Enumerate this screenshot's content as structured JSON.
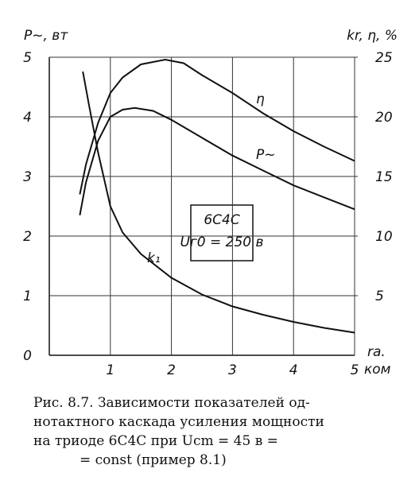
{
  "chart_data": {
    "type": "line",
    "y_label": "P~, вт",
    "y2_label": "kr, η, %",
    "x_label": "rа.",
    "x_unit": "ком",
    "xlim": [
      0,
      5
    ],
    "xticks": [
      1,
      2,
      3,
      4,
      5
    ],
    "ylim": [
      0,
      5
    ],
    "yticks": [
      0,
      1,
      2,
      3,
      4,
      5
    ],
    "y2lim": [
      0,
      25
    ],
    "y2ticks": [
      5,
      10,
      15,
      20,
      25
    ],
    "grid": true,
    "series": [
      {
        "name": "P~",
        "color": "#111",
        "x": [
          0.5,
          0.6,
          0.8,
          1.0,
          1.2,
          1.4,
          1.7,
          2,
          2.5,
          3,
          3.5,
          4,
          4.5,
          5
        ],
        "values": [
          2.35,
          2.9,
          3.6,
          4.0,
          4.12,
          4.15,
          4.1,
          3.95,
          3.65,
          3.35,
          3.1,
          2.85,
          2.65,
          2.45
        ]
      },
      {
        "name": "η",
        "color": "#111",
        "axis": "y2",
        "x": [
          0.5,
          0.6,
          0.8,
          1,
          1.2,
          1.5,
          1.9,
          2.2,
          2.5,
          3,
          3.5,
          4,
          4.5,
          5
        ],
        "values": [
          13.5,
          16,
          19.5,
          22,
          23.3,
          24.4,
          24.8,
          24.5,
          23.5,
          22,
          20.3,
          18.8,
          17.5,
          16.3
        ]
      },
      {
        "name": "k₁",
        "color": "#111",
        "axis": "y2",
        "x": [
          0.55,
          0.65,
          0.8,
          1,
          1.2,
          1.5,
          2,
          2.5,
          3,
          3.5,
          4,
          4.5,
          5
        ],
        "values": [
          23.8,
          21,
          17,
          12.5,
          10.3,
          8.5,
          6.5,
          5.1,
          4.1,
          3.4,
          2.8,
          2.3,
          1.9
        ]
      }
    ],
    "annotation": [
      "6С4С",
      "Uг0 = 250 в"
    ],
    "caption": [
      "Рис. 8.7. Зависимости показателей  од-",
      "нотактного каскада усиления мощности",
      "на  триоде  6С4С  при  Ucm = 45  в =",
      "= const  (пример 8.1)"
    ]
  }
}
